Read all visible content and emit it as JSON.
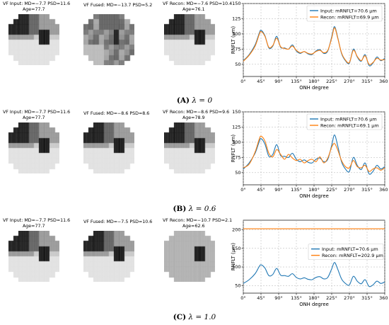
{
  "colors": {
    "input": "#1f77b4",
    "recon": "#ff7f0e",
    "grid": "#b0b0b0"
  },
  "panels": [
    {
      "caption_label": "(A)",
      "caption_lambda": "λ = 0",
      "vf": [
        {
          "title1": "VF Input: MD=−7.7 PSD=11.6",
          "title2": "Age=77.7",
          "map": "input"
        },
        {
          "title1": "VF Fused: MD=−13.7 PSD=5.2",
          "title2": "",
          "map": "fusedA"
        },
        {
          "title1": "VF Recon: MD=−7.6 PSD=10.4",
          "title2": "Age=76.1",
          "map": "input"
        }
      ]
    },
    {
      "caption_label": "(B)",
      "caption_lambda": "λ = 0.6",
      "vf": [
        {
          "title1": "VF Input: MD=−7.7 PSD=11.6",
          "title2": "Age=77.7",
          "map": "input"
        },
        {
          "title1": "VF Fused: MD=−8.6 PSD=8.6",
          "title2": "",
          "map": "input"
        },
        {
          "title1": "VF Recon: MD=−8.6 PSD=9.6",
          "title2": "Age=78.9",
          "map": "input"
        }
      ]
    },
    {
      "caption_label": "(C)",
      "caption_lambda": "λ = 1.0",
      "vf": [
        {
          "title1": "VF Input: MD=−7.7 PSD=11.6",
          "title2": "Age=77.7",
          "map": "input"
        },
        {
          "title1": "VF Fused: MD=−7.5 PSD=10.6",
          "title2": "",
          "map": "input"
        },
        {
          "title1": "VF Recon: MD=−10.7 PSD=2.1",
          "title2": "Age=62.6",
          "map": "uniform"
        }
      ]
    }
  ],
  "chart_data": [
    {
      "type": "line",
      "xlabel": "ONH degree",
      "ylabel": "RNFLT (μm)",
      "xlim": [
        0,
        360
      ],
      "ylim": [
        30,
        150
      ],
      "x_ticks": [
        0,
        45,
        90,
        135,
        180,
        225,
        270,
        315,
        360
      ],
      "x_tick_labels": [
        "0°",
        "45°",
        "90°",
        "135°",
        "180°",
        "225°",
        "270°",
        "315°",
        "360°"
      ],
      "y_ticks": [
        50,
        75,
        100,
        125,
        150
      ],
      "y_tick_labels": [
        "50",
        "75",
        "100",
        "125",
        "150"
      ],
      "grid": true,
      "legend": "top-left",
      "x": [
        0,
        15,
        30,
        40,
        45,
        55,
        65,
        75,
        85,
        95,
        105,
        115,
        125,
        135,
        145,
        155,
        165,
        175,
        185,
        195,
        205,
        215,
        225,
        232,
        240,
        250,
        260,
        270,
        280,
        290,
        300,
        310,
        320,
        330,
        340,
        350,
        360
      ],
      "series": [
        {
          "name": "Input:  mRNFLT=70.6 μm",
          "color_key": "input",
          "values": [
            56,
            66,
            82,
            100,
            106,
            97,
            77,
            80,
            96,
            78,
            77,
            75,
            82,
            72,
            68,
            71,
            67,
            66,
            72,
            74,
            68,
            72,
            95,
            112,
            95,
            68,
            56,
            52,
            75,
            62,
            55,
            66,
            48,
            52,
            62,
            56,
            60
          ]
        },
        {
          "name": "Recon: mRNFLT=69.9 μm",
          "color_key": "recon",
          "values": [
            55,
            65,
            80,
            98,
            104,
            96,
            78,
            81,
            93,
            79,
            76,
            75,
            80,
            73,
            69,
            71,
            68,
            67,
            71,
            73,
            69,
            73,
            93,
            110,
            94,
            69,
            57,
            53,
            73,
            63,
            56,
            64,
            50,
            53,
            60,
            57,
            58
          ]
        }
      ]
    },
    {
      "type": "line",
      "xlabel": "ONH degree",
      "ylabel": "RNFLT (μm)",
      "xlim": [
        0,
        360
      ],
      "ylim": [
        30,
        150
      ],
      "x_ticks": [
        0,
        45,
        90,
        135,
        180,
        225,
        270,
        315,
        360
      ],
      "x_tick_labels": [
        "0°",
        "45°",
        "90°",
        "135°",
        "180°",
        "225°",
        "270°",
        "315°",
        "360°"
      ],
      "y_ticks": [
        50,
        75,
        100,
        125,
        150
      ],
      "y_tick_labels": [
        "50",
        "75",
        "100",
        "125",
        "150"
      ],
      "grid": true,
      "legend": "top-right",
      "x": [
        0,
        15,
        30,
        40,
        45,
        55,
        65,
        75,
        85,
        95,
        105,
        115,
        125,
        135,
        145,
        155,
        165,
        175,
        185,
        195,
        205,
        215,
        225,
        232,
        240,
        250,
        260,
        270,
        280,
        290,
        300,
        310,
        320,
        330,
        340,
        350,
        360
      ],
      "series": [
        {
          "name": "Input:  mRNFLT=70.6 μm",
          "color_key": "input",
          "values": [
            56,
            66,
            82,
            100,
            106,
            97,
            77,
            80,
            96,
            78,
            77,
            75,
            82,
            72,
            68,
            71,
            67,
            66,
            72,
            74,
            68,
            72,
            95,
            112,
            95,
            68,
            56,
            52,
            75,
            62,
            55,
            66,
            48,
            52,
            62,
            56,
            60
          ]
        },
        {
          "name": "Recon: mRNFLT=69.1 μm",
          "color_key": "recon",
          "values": [
            58,
            64,
            84,
            104,
            110,
            102,
            82,
            76,
            88,
            80,
            72,
            80,
            74,
            70,
            72,
            66,
            70,
            72,
            68,
            76,
            66,
            74,
            92,
            98,
            88,
            70,
            60,
            58,
            70,
            60,
            58,
            62,
            52,
            56,
            58,
            54,
            58
          ]
        }
      ]
    },
    {
      "type": "line",
      "xlabel": "ONH degree",
      "ylabel": "RNFLT (μm)",
      "xlim": [
        0,
        360
      ],
      "ylim": [
        30,
        225
      ],
      "x_ticks": [
        0,
        45,
        90,
        135,
        180,
        225,
        270,
        315,
        360
      ],
      "x_tick_labels": [
        "0°",
        "45°",
        "90°",
        "135°",
        "180°",
        "225°",
        "270°",
        "315°",
        "360°"
      ],
      "y_ticks": [
        50,
        100,
        150,
        200
      ],
      "y_tick_labels": [
        "50",
        "100",
        "150",
        "200"
      ],
      "grid": true,
      "legend": "center-right",
      "x": [
        0,
        15,
        30,
        40,
        45,
        55,
        65,
        75,
        85,
        95,
        105,
        115,
        125,
        135,
        145,
        155,
        165,
        175,
        185,
        195,
        205,
        215,
        225,
        232,
        240,
        250,
        260,
        270,
        280,
        290,
        300,
        310,
        320,
        330,
        340,
        350,
        360
      ],
      "series": [
        {
          "name": "Input:  mRNFLT=70.6 μm",
          "color_key": "input",
          "values": [
            56,
            66,
            82,
            100,
            106,
            97,
            77,
            80,
            96,
            78,
            77,
            75,
            82,
            72,
            68,
            71,
            67,
            66,
            72,
            74,
            68,
            72,
            95,
            112,
            95,
            68,
            56,
            52,
            75,
            62,
            55,
            66,
            48,
            52,
            62,
            56,
            60
          ]
        },
        {
          "name": "Recon: mRNFLT=202.9 μm",
          "color_key": "recon",
          "values": [
            202,
            202,
            202,
            202,
            202,
            202,
            202,
            202,
            202,
            202,
            202,
            202,
            202,
            202,
            202,
            202,
            202,
            202,
            202,
            202,
            202,
            202,
            202,
            202,
            202,
            202,
            202,
            202,
            202,
            202,
            202,
            202,
            202,
            202,
            202,
            202,
            202
          ]
        }
      ]
    }
  ]
}
